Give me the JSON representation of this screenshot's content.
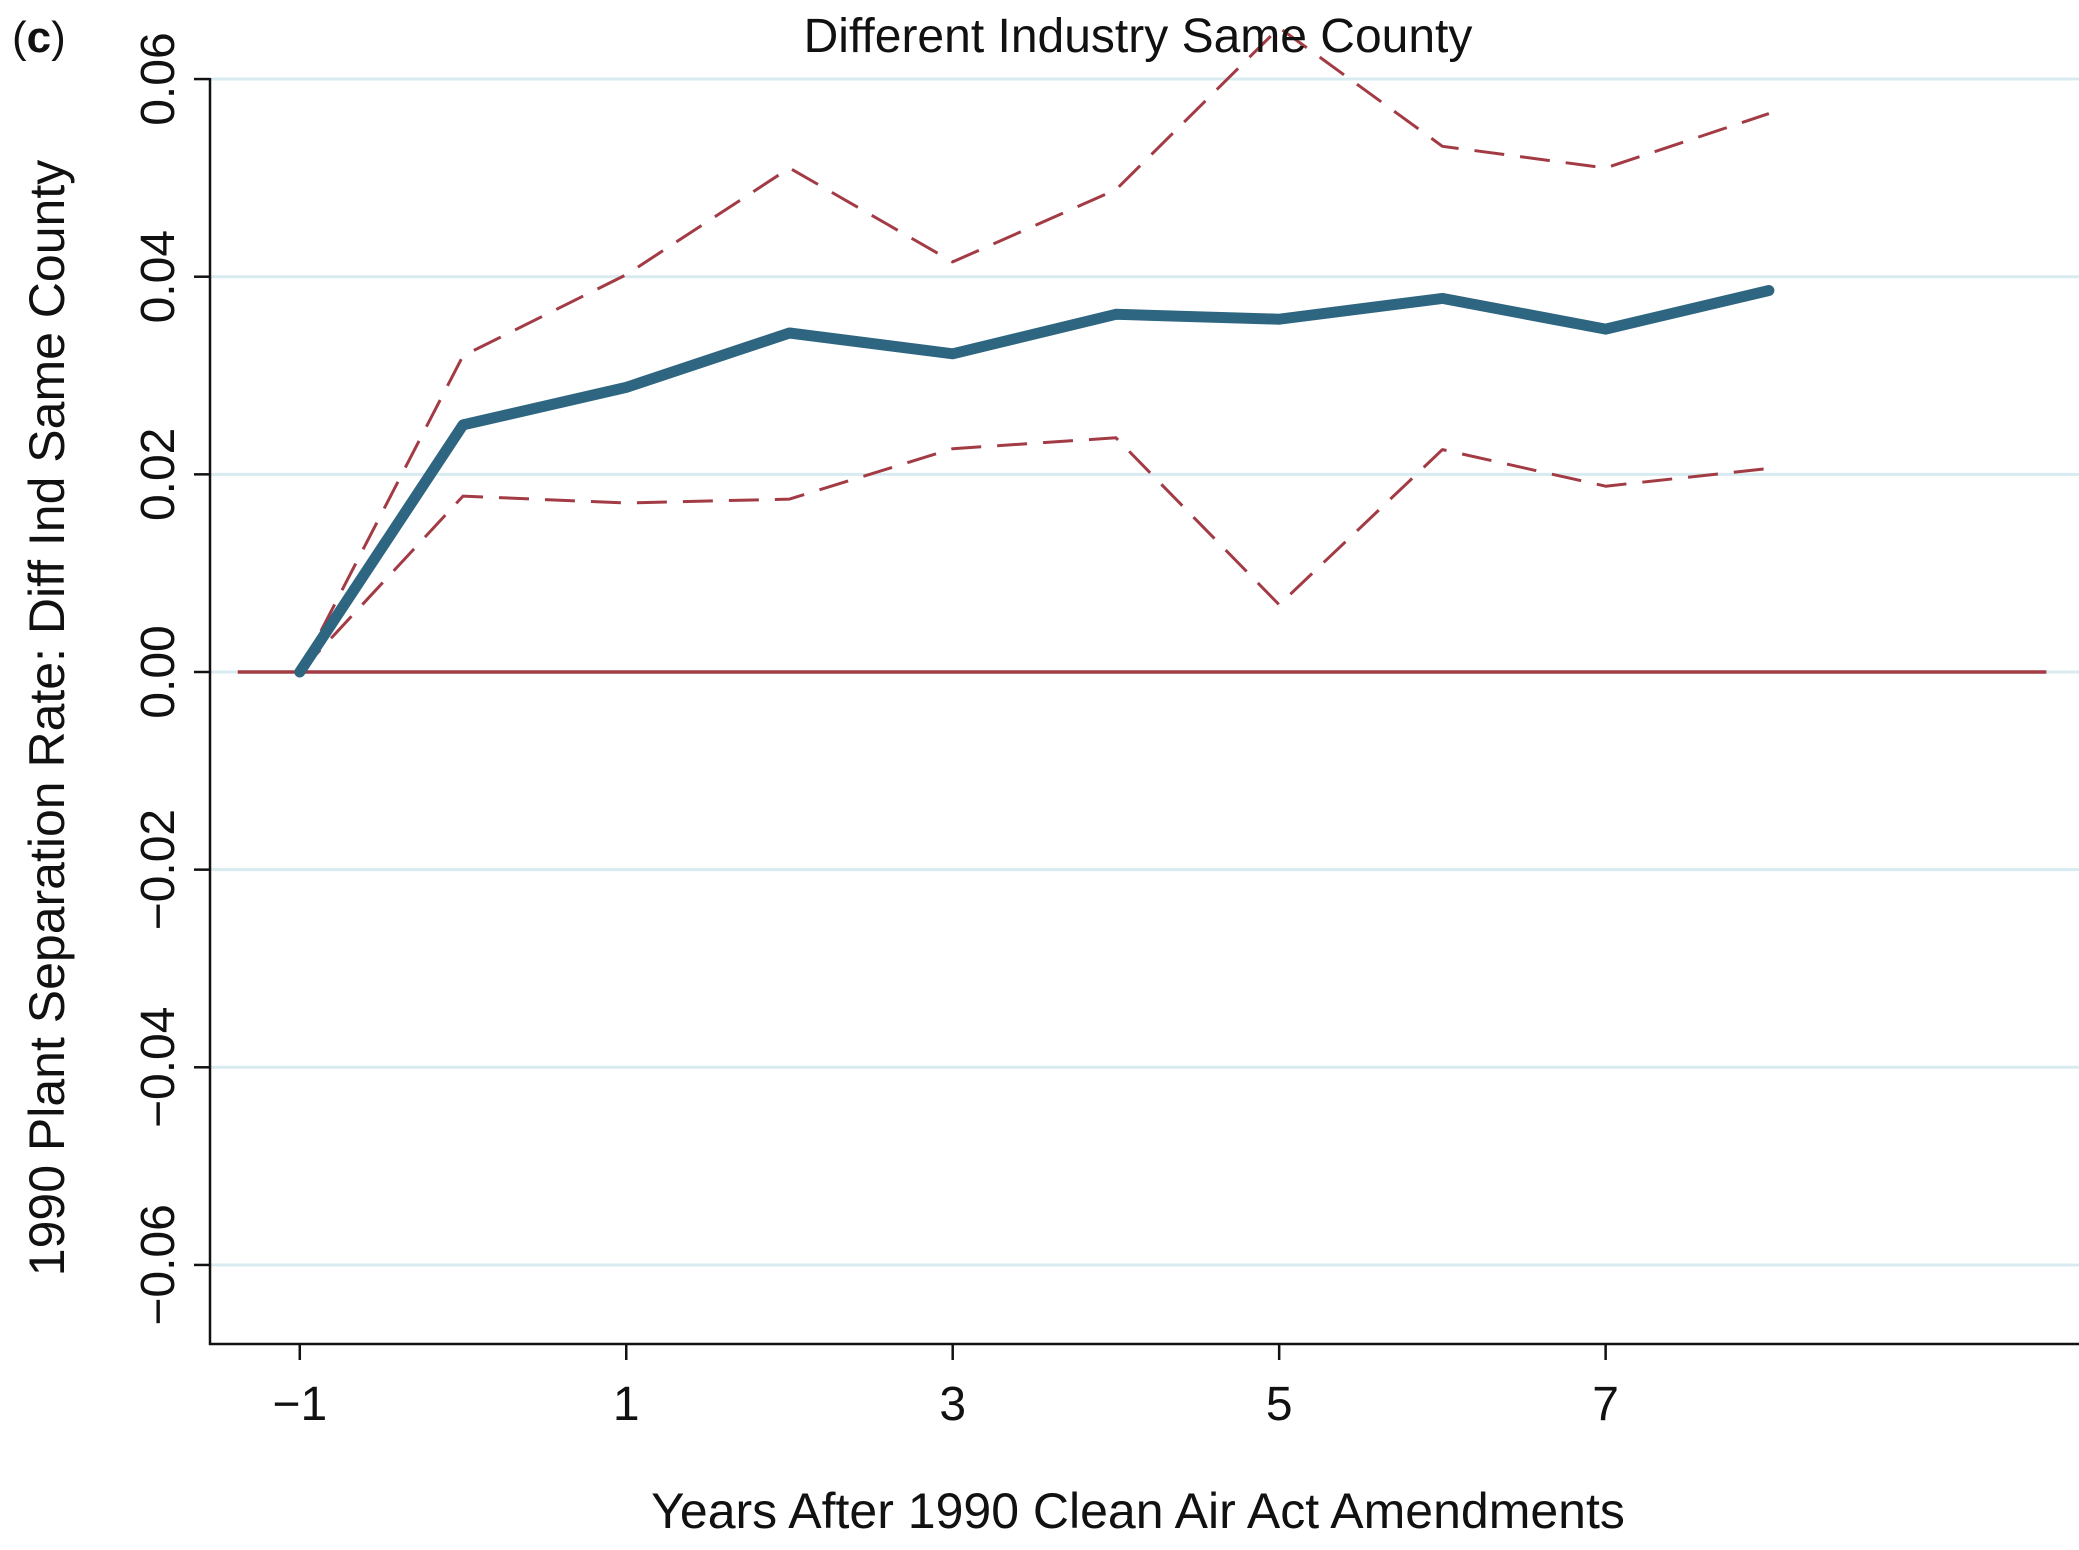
{
  "panel_label": {
    "open": "(",
    "letter": "c",
    "close": ")"
  },
  "chart_data": {
    "type": "line",
    "title": "Different Industry Same County",
    "xlabel": "Years After 1990 Clean Air Act Amendments",
    "ylabel": "1990 Plant Separation Rate: Diff Ind Same County",
    "xlim": [
      -1.55,
      9.9
    ],
    "ylim": [
      -0.068,
      0.068
    ],
    "x_ticks": [
      -1,
      1,
      3,
      5,
      7
    ],
    "x_tick_labels": [
      "−1",
      "1",
      "3",
      "5",
      "7"
    ],
    "y_ticks": [
      -0.06,
      -0.04,
      -0.02,
      0,
      0.02,
      0.04,
      0.06
    ],
    "y_tick_labels": [
      "−0.06",
      "−0.04",
      "−0.02",
      "0.00",
      "0.02",
      "0.04",
      "0.06"
    ],
    "grid": "horizontal",
    "x": [
      -1,
      0,
      1,
      2,
      3,
      4,
      5,
      6,
      7,
      8
    ],
    "series": [
      {
        "role": "estimate",
        "style": "solid-thick",
        "color": "#2e6681",
        "values": [
          0.0,
          0.025,
          0.0288,
          0.0343,
          0.0322,
          0.0362,
          0.0357,
          0.0378,
          0.0347,
          0.0386
        ]
      },
      {
        "role": "upper-bound",
        "style": "dashed",
        "color": "#a33b45",
        "values": [
          0.0,
          0.032,
          0.0402,
          0.051,
          0.0415,
          0.0488,
          0.0652,
          0.0532,
          0.051,
          0.0565
        ]
      },
      {
        "role": "lower-bound",
        "style": "dashed",
        "color": "#a33b45",
        "values": [
          0.0,
          0.0178,
          0.0171,
          0.0175,
          0.0226,
          0.0237,
          0.0068,
          0.0225,
          0.0188,
          0.0206
        ]
      }
    ],
    "reference_line": {
      "y": 0,
      "x_from": -1.38,
      "x_to": 9.7,
      "color": "#a33b45"
    }
  }
}
